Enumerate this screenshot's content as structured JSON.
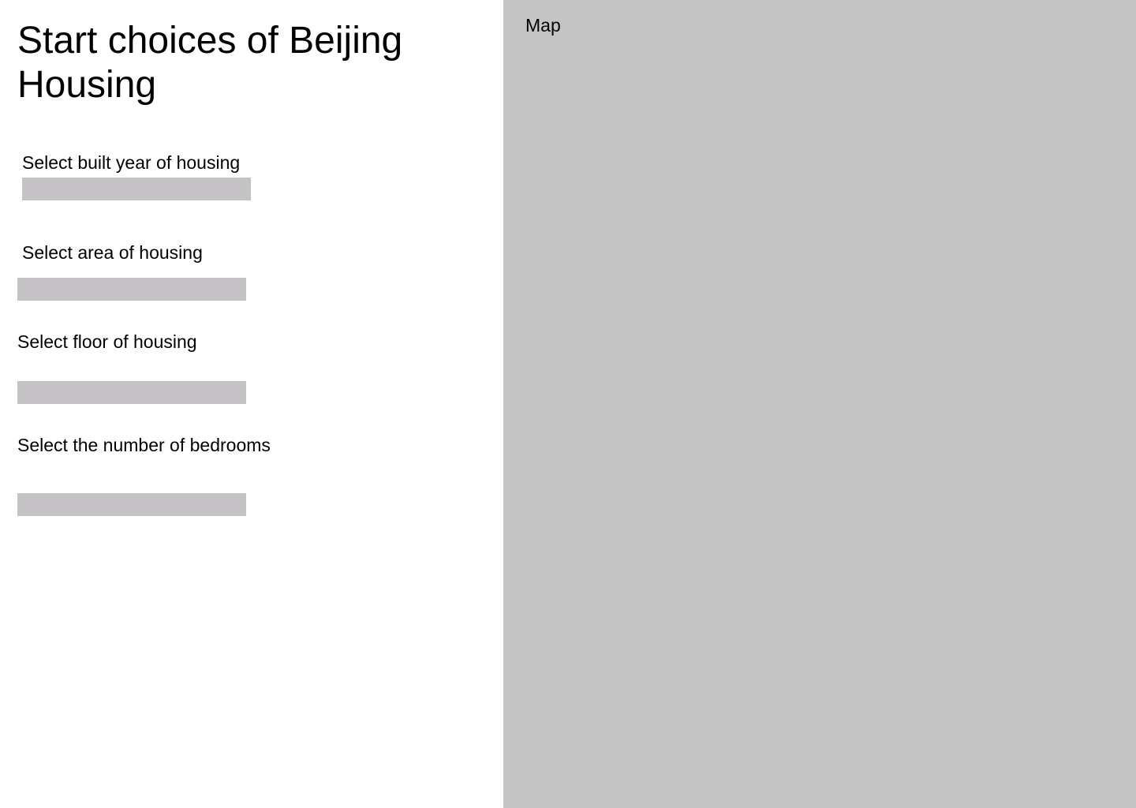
{
  "page": {
    "title": "Start choices of Beijing Housing"
  },
  "filters": {
    "built_year": {
      "label": "Select built year of housing"
    },
    "area": {
      "label": "Select area of housing"
    },
    "floor": {
      "label": "Select floor of housing"
    },
    "bedrooms": {
      "label": "Select the number of bedrooms"
    }
  },
  "map": {
    "label": "Map"
  },
  "colors": {
    "control_fill": "#c4c2c4",
    "map_fill": "#c4c4c4",
    "background": "#ffffff",
    "text": "#000000"
  }
}
